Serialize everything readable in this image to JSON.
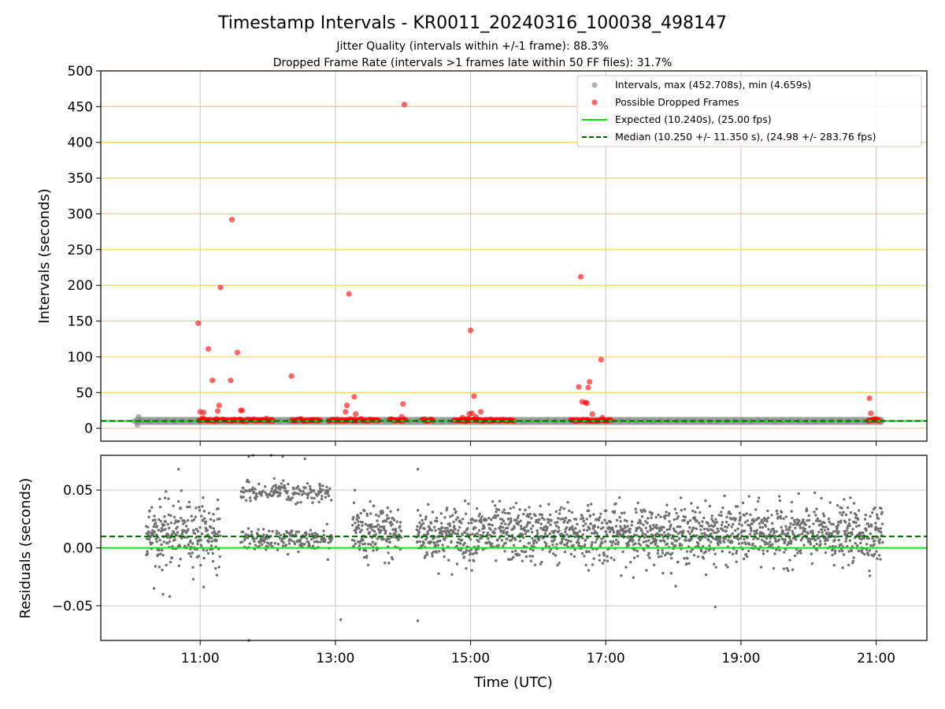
{
  "figure": {
    "title": "Timestamp Intervals - KR0011_20240316_100038_498147",
    "subtitle_line1": "Jitter Quality (intervals within +/-1 frame): 88.3%",
    "subtitle_line2": "Dropped Frame Rate (intervals >1 frames late within 50 FF files): 31.7%"
  },
  "colors": {
    "intervals": "#808080",
    "dropped": "#ff0000",
    "expected": "#00ee00",
    "median": "#006400",
    "hgrid_top": "#ffc040",
    "grid": "#c8c8c8",
    "residual_points": "#707070"
  },
  "chart_data": [
    {
      "type": "scatter",
      "panel": "top",
      "ylabel": "Intervals (seconds)",
      "ylim": [
        -18,
        500
      ],
      "yticks": [
        0,
        50,
        100,
        150,
        200,
        250,
        300,
        350,
        400,
        450,
        500
      ],
      "xlim_hours": [
        9.53,
        21.75
      ],
      "grid": "horizontal-orange",
      "legend_placement": "top-right",
      "legend": [
        "Intervals, max (452.708s), min (4.659s)",
        "Possible Dropped Frames",
        "Expected (10.240s), (25.00 fps)",
        "Median (10.250 +/- 11.350 s), (24.98 +/- 283.76 fps)"
      ],
      "expected": 10.24,
      "median": 10.25,
      "intervals_range_hours": [
        10.02,
        21.12
      ],
      "intervals_low_points": [
        [
          10.07,
          4.7
        ],
        [
          10.09,
          16.0
        ]
      ],
      "dropped_points": [
        [
          10.97,
          147
        ],
        [
          11.0,
          23
        ],
        [
          11.05,
          22
        ],
        [
          11.03,
          14
        ],
        [
          11.12,
          111
        ],
        [
          11.18,
          67
        ],
        [
          11.28,
          32
        ],
        [
          11.3,
          197
        ],
        [
          11.26,
          24
        ],
        [
          11.45,
          67
        ],
        [
          11.47,
          292
        ],
        [
          11.55,
          106
        ],
        [
          11.6,
          25
        ],
        [
          11.62,
          25
        ],
        [
          12.35,
          73
        ],
        [
          13.15,
          23
        ],
        [
          13.17,
          32
        ],
        [
          13.2,
          188
        ],
        [
          13.28,
          44
        ],
        [
          13.3,
          20
        ],
        [
          13.98,
          16
        ],
        [
          14.0,
          34
        ],
        [
          14.02,
          453
        ],
        [
          14.88,
          15
        ],
        [
          14.98,
          20
        ],
        [
          15.0,
          137
        ],
        [
          15.02,
          21
        ],
        [
          15.05,
          45
        ],
        [
          15.08,
          16
        ],
        [
          15.15,
          23
        ],
        [
          16.6,
          58
        ],
        [
          16.63,
          212
        ],
        [
          16.65,
          37
        ],
        [
          16.7,
          36
        ],
        [
          16.72,
          35
        ],
        [
          16.74,
          57
        ],
        [
          16.76,
          65
        ],
        [
          16.8,
          20
        ],
        [
          16.93,
          96
        ],
        [
          16.95,
          15
        ],
        [
          20.9,
          42
        ],
        [
          20.92,
          21
        ]
      ],
      "dropped_cluster_hours": [
        [
          10.98,
          11.62
        ],
        [
          11.6,
          12.08
        ],
        [
          12.35,
          12.78
        ],
        [
          12.9,
          13.65
        ],
        [
          13.8,
          14.05
        ],
        [
          14.28,
          14.45
        ],
        [
          14.75,
          14.98
        ],
        [
          14.9,
          15.65
        ],
        [
          16.48,
          16.62
        ],
        [
          16.65,
          17.08
        ],
        [
          20.88,
          21.05
        ]
      ]
    },
    {
      "type": "scatter",
      "panel": "bottom",
      "xlabel": "Time (UTC)",
      "ylabel": "Residuals (seconds)",
      "ylim": [
        -0.08,
        0.08
      ],
      "yticks": [
        -0.05,
        0.0,
        0.05
      ],
      "ytick_labels": [
        "−0.05",
        "0.00",
        "0.05"
      ],
      "xlim_hours": [
        9.53,
        21.75
      ],
      "xticks_hours": [
        11,
        13,
        15,
        17,
        19,
        21
      ],
      "xtick_labels": [
        "11:00",
        "13:00",
        "15:00",
        "17:00",
        "19:00",
        "21:00"
      ],
      "grid": "on",
      "expected_line": 0.0,
      "median_line": 0.01,
      "residual_clusters": [
        {
          "from": 10.2,
          "to": 11.3,
          "center": 0.012,
          "spread": 0.018
        },
        {
          "from": 11.6,
          "to": 12.95,
          "center": 0.008,
          "spread": 0.006,
          "upper_band": 0.048
        },
        {
          "from": 13.25,
          "to": 13.98,
          "center": 0.012,
          "spread": 0.016
        },
        {
          "from": 14.2,
          "to": 21.1,
          "center": 0.012,
          "spread": 0.016
        }
      ],
      "residual_outliers": [
        [
          11.72,
          0.079
        ],
        [
          11.78,
          0.081
        ],
        [
          12.05,
          0.081
        ],
        [
          12.22,
          0.079
        ],
        [
          12.55,
          0.077
        ],
        [
          10.68,
          0.068
        ],
        [
          14.22,
          0.068
        ],
        [
          13.08,
          -0.062
        ],
        [
          14.22,
          -0.063
        ],
        [
          11.72,
          -0.082
        ],
        [
          18.62,
          -0.051
        ],
        [
          10.45,
          -0.04
        ],
        [
          10.55,
          -0.042
        ]
      ]
    }
  ]
}
